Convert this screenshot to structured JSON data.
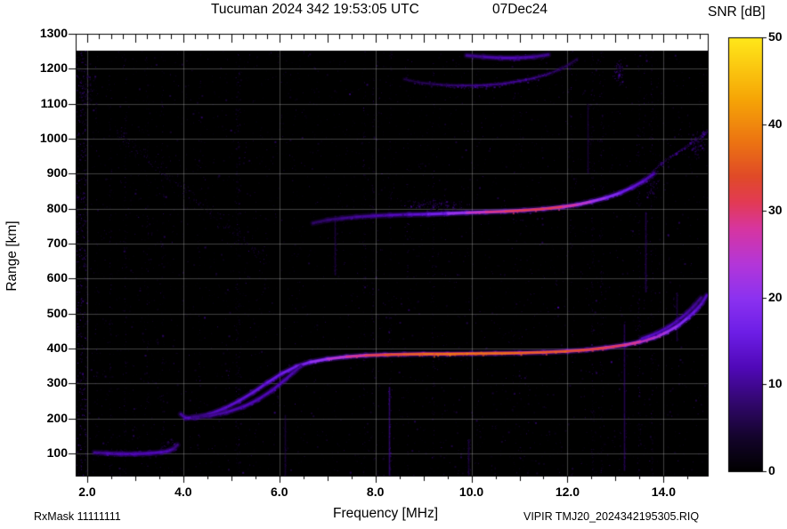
{
  "header": {
    "title": "Tucuman 2024 342 19:53:05 UTC",
    "date": "07Dec24",
    "colorbar_title": "SNR [dB]"
  },
  "footer": {
    "rx_mask": "RxMask 11111111",
    "filename": "VIPIR  TMJ20_2024342195305.RIQ"
  },
  "axes": {
    "x": {
      "label": "Frequency [MHz]",
      "min": 1.76,
      "max": 14.92,
      "major_ticks": [
        2,
        4,
        6,
        8,
        10,
        12,
        14
      ],
      "major_tick_labels": [
        "2.0",
        "4.0",
        "6.0",
        "8.0",
        "10.0",
        "12.0",
        "14.0"
      ],
      "minor_step": 0.5
    },
    "y": {
      "label": "Range [km]",
      "min": 36,
      "max": 1300,
      "major_ticks": [
        100,
        200,
        300,
        400,
        500,
        600,
        700,
        800,
        900,
        1000,
        1100,
        1200,
        1300
      ]
    },
    "colorbar": {
      "label": "SNR [dB]",
      "min": 0,
      "max": 50,
      "ticks": [
        0,
        10,
        20,
        30,
        40,
        50
      ]
    }
  },
  "chart_data": {
    "type": "heatmap",
    "title": "Tucuman 2024 342 19:53:05 UTC 07Dec24",
    "station": "Tucuman",
    "xlabel": "Frequency [MHz]",
    "ylabel": "Range [km]",
    "zlabel": "SNR [dB]",
    "xlim": [
      1.76,
      14.92
    ],
    "ylim": [
      36,
      1300
    ],
    "zlim": [
      0,
      50
    ],
    "plot_background": "#000000",
    "grid": true,
    "colormap_stops": [
      [
        0.0,
        "#000000"
      ],
      [
        0.08,
        "#14042c"
      ],
      [
        0.16,
        "#32076e"
      ],
      [
        0.24,
        "#5008b8"
      ],
      [
        0.32,
        "#6d1ee6"
      ],
      [
        0.4,
        "#8c32f0"
      ],
      [
        0.48,
        "#b436d8"
      ],
      [
        0.56,
        "#d735a0"
      ],
      [
        0.62,
        "#e23a55"
      ],
      [
        0.68,
        "#e04a28"
      ],
      [
        0.76,
        "#ec7412"
      ],
      [
        0.86,
        "#f6a606"
      ],
      [
        1.0,
        "#ffe81a"
      ]
    ],
    "traces": [
      {
        "name": "E-layer echo",
        "style": "line",
        "points": [
          [
            2.15,
            102,
            9
          ],
          [
            2.4,
            100,
            11
          ],
          [
            2.7,
            98,
            12
          ],
          [
            3.0,
            98,
            12
          ],
          [
            3.3,
            100,
            12
          ],
          [
            3.55,
            103,
            12
          ],
          [
            3.7,
            107,
            11
          ],
          [
            3.8,
            113,
            10
          ],
          [
            3.88,
            124,
            8
          ]
        ]
      },
      {
        "name": "F-region first hop O-mode",
        "style": "line",
        "points": [
          [
            3.95,
            212,
            10
          ],
          [
            4.05,
            201,
            12
          ],
          [
            4.25,
            202,
            13
          ],
          [
            4.55,
            212,
            13
          ],
          [
            4.85,
            228,
            13
          ],
          [
            5.15,
            249,
            14
          ],
          [
            5.45,
            274,
            14
          ],
          [
            5.75,
            302,
            15
          ],
          [
            6.05,
            328,
            16
          ],
          [
            6.35,
            348,
            17
          ],
          [
            6.65,
            361,
            19
          ],
          [
            7.0,
            370,
            23
          ],
          [
            7.4,
            376,
            27
          ],
          [
            7.8,
            380,
            31
          ],
          [
            8.2,
            382,
            34
          ],
          [
            8.6,
            383,
            36
          ],
          [
            9.0,
            384,
            37
          ],
          [
            9.5,
            384,
            38
          ],
          [
            10.0,
            385,
            38
          ],
          [
            10.5,
            386,
            38
          ],
          [
            11.0,
            387,
            37
          ],
          [
            11.5,
            389,
            36
          ],
          [
            12.0,
            392,
            35
          ],
          [
            12.4,
            396,
            34
          ],
          [
            12.8,
            402,
            32
          ],
          [
            13.2,
            410,
            30
          ],
          [
            13.5,
            419,
            28
          ],
          [
            13.8,
            431,
            26
          ],
          [
            14.05,
            446,
            23
          ],
          [
            14.3,
            465,
            20
          ],
          [
            14.5,
            487,
            17
          ],
          [
            14.68,
            510,
            14
          ],
          [
            14.8,
            530,
            13
          ],
          [
            14.9,
            552,
            12
          ]
        ]
      },
      {
        "name": "first hop inner branch at cusp",
        "style": "line",
        "points": [
          [
            4.2,
            204,
            9
          ],
          [
            4.55,
            207,
            10
          ],
          [
            4.9,
            217,
            11
          ],
          [
            5.25,
            233,
            12
          ],
          [
            5.55,
            253,
            12
          ],
          [
            5.85,
            280,
            12
          ],
          [
            6.1,
            308,
            12
          ],
          [
            6.3,
            332,
            11
          ],
          [
            6.45,
            350,
            10
          ]
        ]
      },
      {
        "name": "first hop X-mode tail",
        "style": "line",
        "points": [
          [
            13.55,
            428,
            13
          ],
          [
            13.85,
            443,
            13
          ],
          [
            14.1,
            461,
            12
          ],
          [
            14.3,
            480,
            12
          ],
          [
            14.5,
            503,
            11
          ],
          [
            14.65,
            524,
            10
          ],
          [
            14.78,
            545,
            9
          ]
        ]
      },
      {
        "name": "F-region second hop",
        "style": "line",
        "points": [
          [
            6.7,
            758,
            7
          ],
          [
            7.0,
            767,
            8
          ],
          [
            7.3,
            772,
            9
          ],
          [
            7.6,
            776,
            10
          ],
          [
            7.95,
            779,
            11
          ],
          [
            8.3,
            781,
            12
          ],
          [
            8.7,
            783,
            13
          ],
          [
            9.1,
            784,
            15
          ],
          [
            9.5,
            786,
            19
          ],
          [
            9.9,
            788,
            24
          ],
          [
            10.3,
            790,
            28
          ],
          [
            10.7,
            792,
            31
          ],
          [
            11.1,
            795,
            32
          ],
          [
            11.5,
            799,
            32
          ],
          [
            11.9,
            805,
            30
          ],
          [
            12.2,
            811,
            27
          ],
          [
            12.5,
            820,
            24
          ],
          [
            12.8,
            831,
            20
          ],
          [
            13.1,
            845,
            17
          ],
          [
            13.35,
            861,
            15
          ],
          [
            13.6,
            880,
            13
          ],
          [
            13.8,
            900,
            11
          ]
        ]
      },
      {
        "name": "second hop upper extension",
        "style": "speckle",
        "points": [
          [
            13.75,
            905,
            9
          ],
          [
            13.95,
            928,
            10
          ],
          [
            14.15,
            949,
            10
          ],
          [
            14.35,
            967,
            10
          ],
          [
            14.55,
            985,
            10
          ],
          [
            14.72,
            1002,
            10
          ],
          [
            14.85,
            1016,
            9
          ],
          [
            14.92,
            1026,
            9
          ]
        ]
      },
      {
        "name": "third multiple",
        "style": "speckle-line",
        "points": [
          [
            8.6,
            1170,
            6
          ],
          [
            8.9,
            1161,
            7
          ],
          [
            9.2,
            1156,
            8
          ],
          [
            9.5,
            1153,
            9
          ],
          [
            9.8,
            1152,
            10
          ],
          [
            10.1,
            1152,
            11
          ],
          [
            10.4,
            1154,
            11
          ],
          [
            10.7,
            1158,
            11
          ],
          [
            11.0,
            1165,
            11
          ],
          [
            11.3,
            1173,
            10
          ],
          [
            11.6,
            1185,
            9
          ],
          [
            11.85,
            1199,
            8
          ],
          [
            12.05,
            1214,
            7
          ],
          [
            12.2,
            1228,
            6
          ]
        ]
      },
      {
        "name": "upper multiple streak",
        "style": "line",
        "points": [
          [
            9.9,
            1238,
            9
          ],
          [
            10.25,
            1234,
            11
          ],
          [
            10.6,
            1231,
            12
          ],
          [
            10.95,
            1231,
            12
          ],
          [
            11.3,
            1234,
            11
          ],
          [
            11.6,
            1240,
            9
          ]
        ]
      }
    ],
    "rfi_vertical_lines": [
      {
        "freq_mhz": 8.29,
        "range_km": [
          36,
          290
        ],
        "snr_db": 13
      },
      {
        "freq_mhz": 13.17,
        "range_km": [
          50,
          470
        ],
        "snr_db": 10
      },
      {
        "freq_mhz": 13.62,
        "range_km": [
          560,
          790
        ],
        "snr_db": 9
      },
      {
        "freq_mhz": 7.16,
        "range_km": [
          610,
          780
        ],
        "snr_db": 8
      },
      {
        "freq_mhz": 14.27,
        "range_km": [
          420,
          560
        ],
        "snr_db": 8
      },
      {
        "freq_mhz": 9.94,
        "range_km": [
          36,
          140
        ],
        "snr_db": 8
      },
      {
        "freq_mhz": 6.12,
        "range_km": [
          36,
          210
        ],
        "snr_db": 7
      },
      {
        "freq_mhz": 12.42,
        "range_km": [
          900,
          1100
        ],
        "snr_db": 7
      }
    ],
    "noise_clusters": [
      {
        "freq_mhz": 13.05,
        "range_km": 1190,
        "f_spread": 0.15,
        "km_spread": 55,
        "count": 90,
        "snr_db": 12
      },
      {
        "freq_mhz": 9.3,
        "range_km": 812,
        "f_spread": 0.9,
        "km_spread": 22,
        "count": 160,
        "snr_db": 11
      },
      {
        "freq_mhz": 14.7,
        "range_km": 985,
        "f_spread": 0.25,
        "km_spread": 55,
        "count": 110,
        "snr_db": 10
      },
      {
        "freq_mhz": 2.0,
        "range_km": 1140,
        "f_spread": 0.25,
        "km_spread": 90,
        "count": 70,
        "snr_db": 9
      },
      {
        "freq_mhz": 2.9,
        "range_km": 102,
        "f_spread": 0.8,
        "km_spread": 18,
        "count": 80,
        "snr_db": 8
      },
      {
        "freq_mhz": 3.65,
        "range_km": 125,
        "f_spread": 0.2,
        "km_spread": 22,
        "count": 45,
        "snr_db": 9
      },
      {
        "freq_mhz": 13.75,
        "range_km": 870,
        "f_spread": 0.2,
        "km_spread": 60,
        "count": 70,
        "snr_db": 10
      }
    ],
    "diagonal_noise_band": {
      "from": [
        2.65,
        1015
      ],
      "to": [
        5.7,
        655
      ],
      "km_spread": 28,
      "count": 260,
      "max_snr_db": 9
    },
    "left_edge_noise_band": {
      "freq_range": [
        1.76,
        1.97
      ],
      "count": 420,
      "max_snr_db": 13
    },
    "background_noise": {
      "speckle_count": 6500,
      "max_snr_db": 8,
      "noisy_columns": 28
    }
  }
}
